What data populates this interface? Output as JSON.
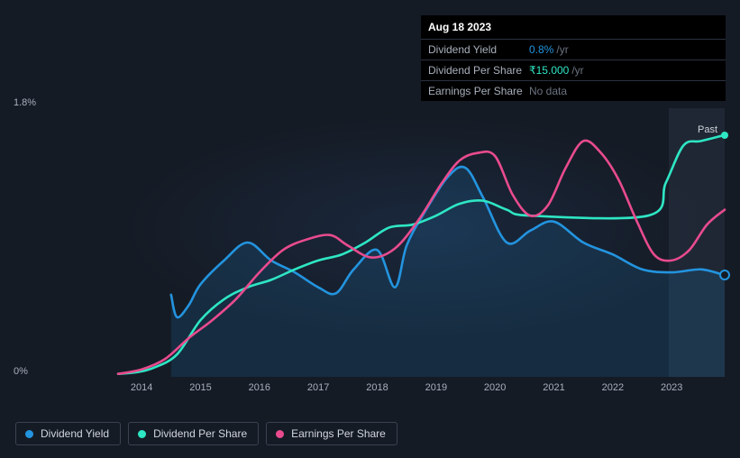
{
  "tooltip": {
    "date": "Aug 18 2023",
    "rows": [
      {
        "label": "Dividend Yield",
        "value": "0.8%",
        "suffix": "/yr",
        "color": "#2394df"
      },
      {
        "label": "Dividend Per Share",
        "value": "₹15.000",
        "suffix": "/yr",
        "color": "#2ee6c4"
      },
      {
        "label": "Earnings Per Share",
        "value": "No data",
        "nodata": true,
        "color": "#e94b8e"
      }
    ]
  },
  "chart": {
    "type": "line",
    "background_color": "#151b25",
    "grid": false,
    "y_axis": {
      "min_label": "0%",
      "max_label": "1.8%",
      "min": 0,
      "max": 1.8,
      "label_color": "#a8b0bc",
      "label_fontsize": 11
    },
    "x_axis": {
      "min": 2013.6,
      "max": 2023.9,
      "ticks": [
        2014,
        2015,
        2016,
        2017,
        2018,
        2019,
        2020,
        2021,
        2022,
        2023
      ],
      "label_color": "#a8b0bc",
      "label_fontsize": 11
    },
    "plot_area_color": "#1a2230",
    "past_band": {
      "start": 2022.95,
      "label": "Past",
      "color": "rgba(80,95,120,0.18)"
    },
    "line_width": 2.6,
    "series": [
      {
        "name": "Dividend Yield",
        "color": "#2394df",
        "area_fill": "rgba(35,148,223,0.15)",
        "data": [
          [
            2014.5,
            0.55
          ],
          [
            2014.6,
            0.4
          ],
          [
            2014.8,
            0.48
          ],
          [
            2015.0,
            0.62
          ],
          [
            2015.4,
            0.78
          ],
          [
            2015.8,
            0.9
          ],
          [
            2016.2,
            0.78
          ],
          [
            2016.6,
            0.7
          ],
          [
            2017.0,
            0.6
          ],
          [
            2017.3,
            0.56
          ],
          [
            2017.6,
            0.72
          ],
          [
            2018.0,
            0.85
          ],
          [
            2018.3,
            0.6
          ],
          [
            2018.5,
            0.88
          ],
          [
            2018.8,
            1.1
          ],
          [
            2019.2,
            1.34
          ],
          [
            2019.5,
            1.4
          ],
          [
            2019.8,
            1.2
          ],
          [
            2020.2,
            0.9
          ],
          [
            2020.6,
            0.98
          ],
          [
            2021.0,
            1.04
          ],
          [
            2021.5,
            0.9
          ],
          [
            2022.0,
            0.82
          ],
          [
            2022.5,
            0.72
          ],
          [
            2023.0,
            0.7
          ],
          [
            2023.5,
            0.72
          ],
          [
            2023.9,
            0.68
          ]
        ],
        "end_dot_ring": true
      },
      {
        "name": "Dividend Per Share",
        "color": "#2ee6c4",
        "data": [
          [
            2013.6,
            0.02
          ],
          [
            2013.9,
            0.03
          ],
          [
            2014.2,
            0.06
          ],
          [
            2014.6,
            0.15
          ],
          [
            2015.0,
            0.38
          ],
          [
            2015.4,
            0.52
          ],
          [
            2015.8,
            0.6
          ],
          [
            2016.2,
            0.65
          ],
          [
            2016.6,
            0.72
          ],
          [
            2017.0,
            0.78
          ],
          [
            2017.4,
            0.82
          ],
          [
            2017.8,
            0.9
          ],
          [
            2018.2,
            1.0
          ],
          [
            2018.6,
            1.02
          ],
          [
            2019.0,
            1.08
          ],
          [
            2019.4,
            1.16
          ],
          [
            2019.8,
            1.18
          ],
          [
            2020.2,
            1.12
          ],
          [
            2020.6,
            1.08
          ],
          [
            2022.6,
            1.08
          ],
          [
            2022.9,
            1.3
          ],
          [
            2023.2,
            1.55
          ],
          [
            2023.5,
            1.58
          ],
          [
            2023.9,
            1.62
          ]
        ],
        "end_dot": true
      },
      {
        "name": "Earnings Per Share",
        "color": "#e94b8e",
        "data": [
          [
            2013.6,
            0.02
          ],
          [
            2014.0,
            0.05
          ],
          [
            2014.4,
            0.12
          ],
          [
            2014.8,
            0.26
          ],
          [
            2015.2,
            0.38
          ],
          [
            2015.6,
            0.52
          ],
          [
            2016.0,
            0.7
          ],
          [
            2016.4,
            0.85
          ],
          [
            2016.8,
            0.92
          ],
          [
            2017.2,
            0.95
          ],
          [
            2017.5,
            0.88
          ],
          [
            2017.9,
            0.8
          ],
          [
            2018.3,
            0.86
          ],
          [
            2018.7,
            1.05
          ],
          [
            2019.1,
            1.3
          ],
          [
            2019.4,
            1.45
          ],
          [
            2019.7,
            1.5
          ],
          [
            2020.0,
            1.48
          ],
          [
            2020.3,
            1.22
          ],
          [
            2020.6,
            1.08
          ],
          [
            2020.9,
            1.15
          ],
          [
            2021.2,
            1.4
          ],
          [
            2021.5,
            1.58
          ],
          [
            2021.8,
            1.5
          ],
          [
            2022.1,
            1.32
          ],
          [
            2022.4,
            1.05
          ],
          [
            2022.7,
            0.82
          ],
          [
            2023.0,
            0.78
          ],
          [
            2023.3,
            0.85
          ],
          [
            2023.6,
            1.02
          ],
          [
            2023.9,
            1.12
          ]
        ]
      }
    ]
  },
  "legend": {
    "items": [
      {
        "label": "Dividend Yield",
        "color": "#2394df"
      },
      {
        "label": "Dividend Per Share",
        "color": "#2ee6c4"
      },
      {
        "label": "Earnings Per Share",
        "color": "#e94b8e"
      }
    ],
    "border_color": "#3a4250",
    "text_color": "#d0d5dd",
    "fontsize": 12
  }
}
